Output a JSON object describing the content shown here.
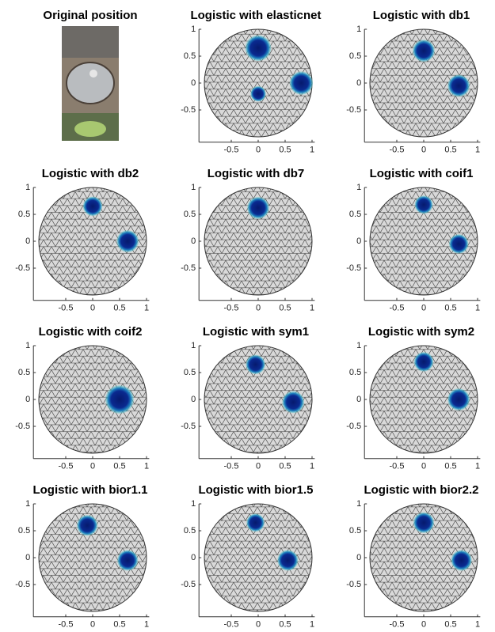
{
  "chart_data": [
    {
      "type": "image",
      "title": "Original position"
    },
    {
      "type": "mesh",
      "title": "Logistic with elasticnet",
      "xlim": [
        -1.1,
        1.05
      ],
      "ylim": [
        -1.1,
        1
      ],
      "xticks": [
        -0.5,
        0,
        0.5,
        1
      ],
      "yticks": [
        -0.5,
        0,
        0.5,
        1
      ],
      "targets": [
        {
          "x": 0,
          "y": 0.65,
          "r": 0.2
        },
        {
          "x": 0.8,
          "y": 0,
          "r": 0.18
        },
        {
          "x": 0,
          "y": -0.2,
          "r": 0.12
        }
      ]
    },
    {
      "type": "mesh",
      "title": "Logistic with db1",
      "xlim": [
        -1.1,
        1.05
      ],
      "ylim": [
        -1.1,
        1
      ],
      "xticks": [
        -0.5,
        0,
        0.5,
        1
      ],
      "yticks": [
        -0.5,
        0,
        0.5,
        1
      ],
      "targets": [
        {
          "x": 0,
          "y": 0.6,
          "r": 0.17
        },
        {
          "x": 0.65,
          "y": -0.05,
          "r": 0.17
        }
      ]
    },
    {
      "type": "mesh",
      "title": "Logistic with db2",
      "xlim": [
        -1.1,
        1.05
      ],
      "ylim": [
        -1.1,
        1
      ],
      "xticks": [
        -0.5,
        0,
        0.5,
        1
      ],
      "yticks": [
        -0.5,
        0,
        0.5,
        1
      ],
      "targets": [
        {
          "x": 0,
          "y": 0.65,
          "r": 0.15
        },
        {
          "x": 0.65,
          "y": 0,
          "r": 0.17
        }
      ]
    },
    {
      "type": "mesh",
      "title": "Logistic with db7",
      "xlim": [
        -1.1,
        1.05
      ],
      "ylim": [
        -1.1,
        1
      ],
      "xticks": [
        -0.5,
        0,
        0.5,
        1
      ],
      "yticks": [
        -0.5,
        0,
        0.5,
        1
      ],
      "targets": [
        {
          "x": 0,
          "y": 0.62,
          "r": 0.17
        }
      ]
    },
    {
      "type": "mesh",
      "title": "Logistic with coif1",
      "xlim": [
        -1.1,
        1.05
      ],
      "ylim": [
        -1.1,
        1
      ],
      "xticks": [
        -0.5,
        0,
        0.5,
        1
      ],
      "yticks": [
        -0.5,
        0,
        0.5,
        1
      ],
      "targets": [
        {
          "x": 0,
          "y": 0.68,
          "r": 0.14
        },
        {
          "x": 0.65,
          "y": -0.05,
          "r": 0.15
        }
      ]
    },
    {
      "type": "mesh",
      "title": "Logistic with coif2",
      "xlim": [
        -1.1,
        1.05
      ],
      "ylim": [
        -1.1,
        1
      ],
      "xticks": [
        -0.5,
        0,
        0.5,
        1
      ],
      "yticks": [
        -0.5,
        0,
        0.5,
        1
      ],
      "targets": [
        {
          "x": 0.5,
          "y": 0,
          "r": 0.22
        }
      ]
    },
    {
      "type": "mesh",
      "title": "Logistic with sym1",
      "xlim": [
        -1.1,
        1.05
      ],
      "ylim": [
        -1.1,
        1
      ],
      "xticks": [
        -0.5,
        0,
        0.5,
        1
      ],
      "yticks": [
        -0.5,
        0,
        0.5,
        1
      ],
      "targets": [
        {
          "x": -0.05,
          "y": 0.65,
          "r": 0.15
        },
        {
          "x": 0.65,
          "y": -0.05,
          "r": 0.17
        }
      ]
    },
    {
      "type": "mesh",
      "title": "Logistic with sym2",
      "xlim": [
        -1.1,
        1.05
      ],
      "ylim": [
        -1.1,
        1
      ],
      "xticks": [
        -0.5,
        0,
        0.5,
        1
      ],
      "yticks": [
        -0.5,
        0,
        0.5,
        1
      ],
      "targets": [
        {
          "x": 0,
          "y": 0.7,
          "r": 0.15
        },
        {
          "x": 0.65,
          "y": 0,
          "r": 0.17
        }
      ]
    },
    {
      "type": "mesh",
      "title": "Logistic with bior1.1",
      "xlim": [
        -1.1,
        1.05
      ],
      "ylim": [
        -1.1,
        1
      ],
      "xticks": [
        -0.5,
        0,
        0.5,
        1
      ],
      "yticks": [
        -0.5,
        0,
        0.5,
        1
      ],
      "targets": [
        {
          "x": -0.1,
          "y": 0.6,
          "r": 0.16
        },
        {
          "x": 0.65,
          "y": -0.05,
          "r": 0.16
        }
      ]
    },
    {
      "type": "mesh",
      "title": "Logistic with bior1.5",
      "xlim": [
        -1.1,
        1.05
      ],
      "ylim": [
        -1.1,
        1
      ],
      "xticks": [
        -0.5,
        0,
        0.5,
        1
      ],
      "yticks": [
        -0.5,
        0,
        0.5,
        1
      ],
      "targets": [
        {
          "x": -0.05,
          "y": 0.65,
          "r": 0.14
        },
        {
          "x": 0.55,
          "y": -0.05,
          "r": 0.16
        }
      ]
    },
    {
      "type": "mesh",
      "title": "Logistic with bior2.2",
      "xlim": [
        -1.1,
        1.05
      ],
      "ylim": [
        -1.1,
        1
      ],
      "xticks": [
        -0.5,
        0,
        0.5,
        1
      ],
      "yticks": [
        -0.5,
        0,
        0.5,
        1
      ],
      "targets": [
        {
          "x": 0,
          "y": 0.65,
          "r": 0.16
        },
        {
          "x": 0.7,
          "y": -0.05,
          "r": 0.16
        }
      ]
    }
  ]
}
